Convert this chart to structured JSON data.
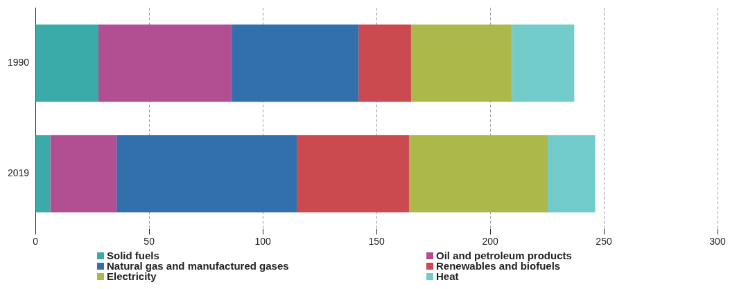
{
  "chart_data": {
    "type": "bar",
    "orientation": "horizontal",
    "stacked": true,
    "categories": [
      "1990",
      "2019"
    ],
    "series": [
      {
        "name": "Solid fuels",
        "color": "#3aaba8",
        "values": [
          27.7,
          6.5
        ]
      },
      {
        "name": "Oil and petroleum products",
        "color": "#b24f93",
        "values": [
          58.6,
          29.2
        ]
      },
      {
        "name": "Natural gas and manufactured gases",
        "color": "#3170ad",
        "values": [
          55.8,
          79.2
        ]
      },
      {
        "name": "Renewables and biofuels",
        "color": "#cb4a4f",
        "values": [
          23.1,
          49.4
        ]
      },
      {
        "name": "Electricity",
        "color": "#acb84a",
        "values": [
          44.4,
          61.0
        ]
      },
      {
        "name": "Heat",
        "color": "#72cccc",
        "values": [
          27.4,
          20.9
        ]
      }
    ],
    "xlim": [
      0,
      300
    ],
    "xticks": [
      0,
      50,
      100,
      150,
      200,
      250,
      300
    ],
    "grid": "x",
    "legend": "bottom"
  }
}
